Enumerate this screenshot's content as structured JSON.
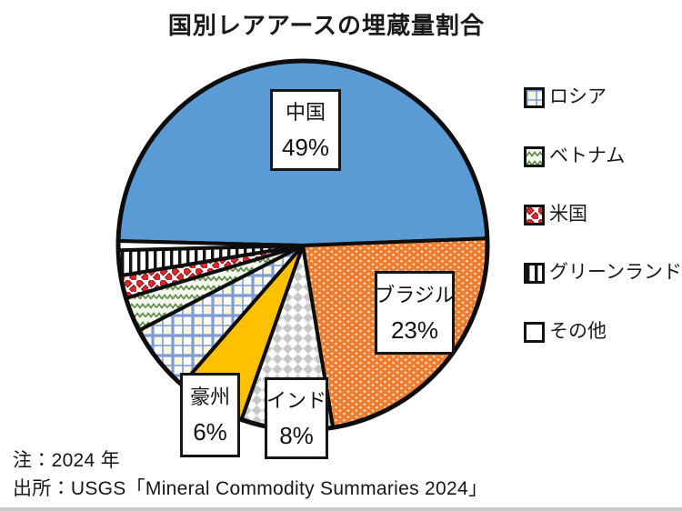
{
  "chart_data": {
    "type": "pie",
    "title": "国別レアアースの埋蔵量割合",
    "unit": "%",
    "start_angle_deg": 178.6,
    "direction": "clockwise",
    "outline_color": "#0d0d0d",
    "slices": [
      {
        "name": "中国",
        "value": 49,
        "percent_label": "49%",
        "labeled_in_chart": true,
        "fill": "#5B9BD5"
      },
      {
        "name": "ブラジル",
        "value": 23,
        "percent_label": "23%",
        "labeled_in_chart": true,
        "fill": "dots-orange"
      },
      {
        "name": "インド",
        "value": 8,
        "percent_label": "8%",
        "labeled_in_chart": true,
        "fill": "weave-gray"
      },
      {
        "name": "豪州",
        "value": 6,
        "percent_label": "6%",
        "labeled_in_chart": true,
        "fill": "#FFC000"
      },
      {
        "name": "ロシア",
        "value": 6,
        "labeled_in_chart": false,
        "fill": "plaid-blue"
      },
      {
        "name": "ベトナム",
        "value": 3,
        "labeled_in_chart": false,
        "fill": "zigzag-green"
      },
      {
        "name": "米国",
        "value": 2,
        "labeled_in_chart": false,
        "fill": "diamonds-red"
      },
      {
        "name": "グリーンランド",
        "value": 2.2,
        "labeled_in_chart": false,
        "fill": "stripes-vertical"
      },
      {
        "name": "その他",
        "value": 0.8,
        "labeled_in_chart": false,
        "fill": "#FFFFFF"
      }
    ],
    "legend_position": "right",
    "colors": {
      "china_blue": "#5B9BD5",
      "brazil_orange": "#ED7D31",
      "australia_yellow": "#FFC000",
      "plaid_line_blue": "#7D9BD6",
      "zigzag_green": "#5E8A47",
      "diamond_red": "#E3242B",
      "stripe_black": "#111111"
    }
  },
  "legend": {
    "items": [
      {
        "label": "ロシア",
        "fill": "plaid-blue"
      },
      {
        "label": "ベトナム",
        "fill": "zigzag-green"
      },
      {
        "label": "米国",
        "fill": "diamonds-red"
      },
      {
        "label": "グリーンランド",
        "fill": "stripes-vertical"
      },
      {
        "label": "その他",
        "fill": "#FFFFFF"
      }
    ]
  },
  "notes": {
    "note": "注：2024 年",
    "source": "出所：USGS「Mineral Commodity Summaries 2024」"
  }
}
